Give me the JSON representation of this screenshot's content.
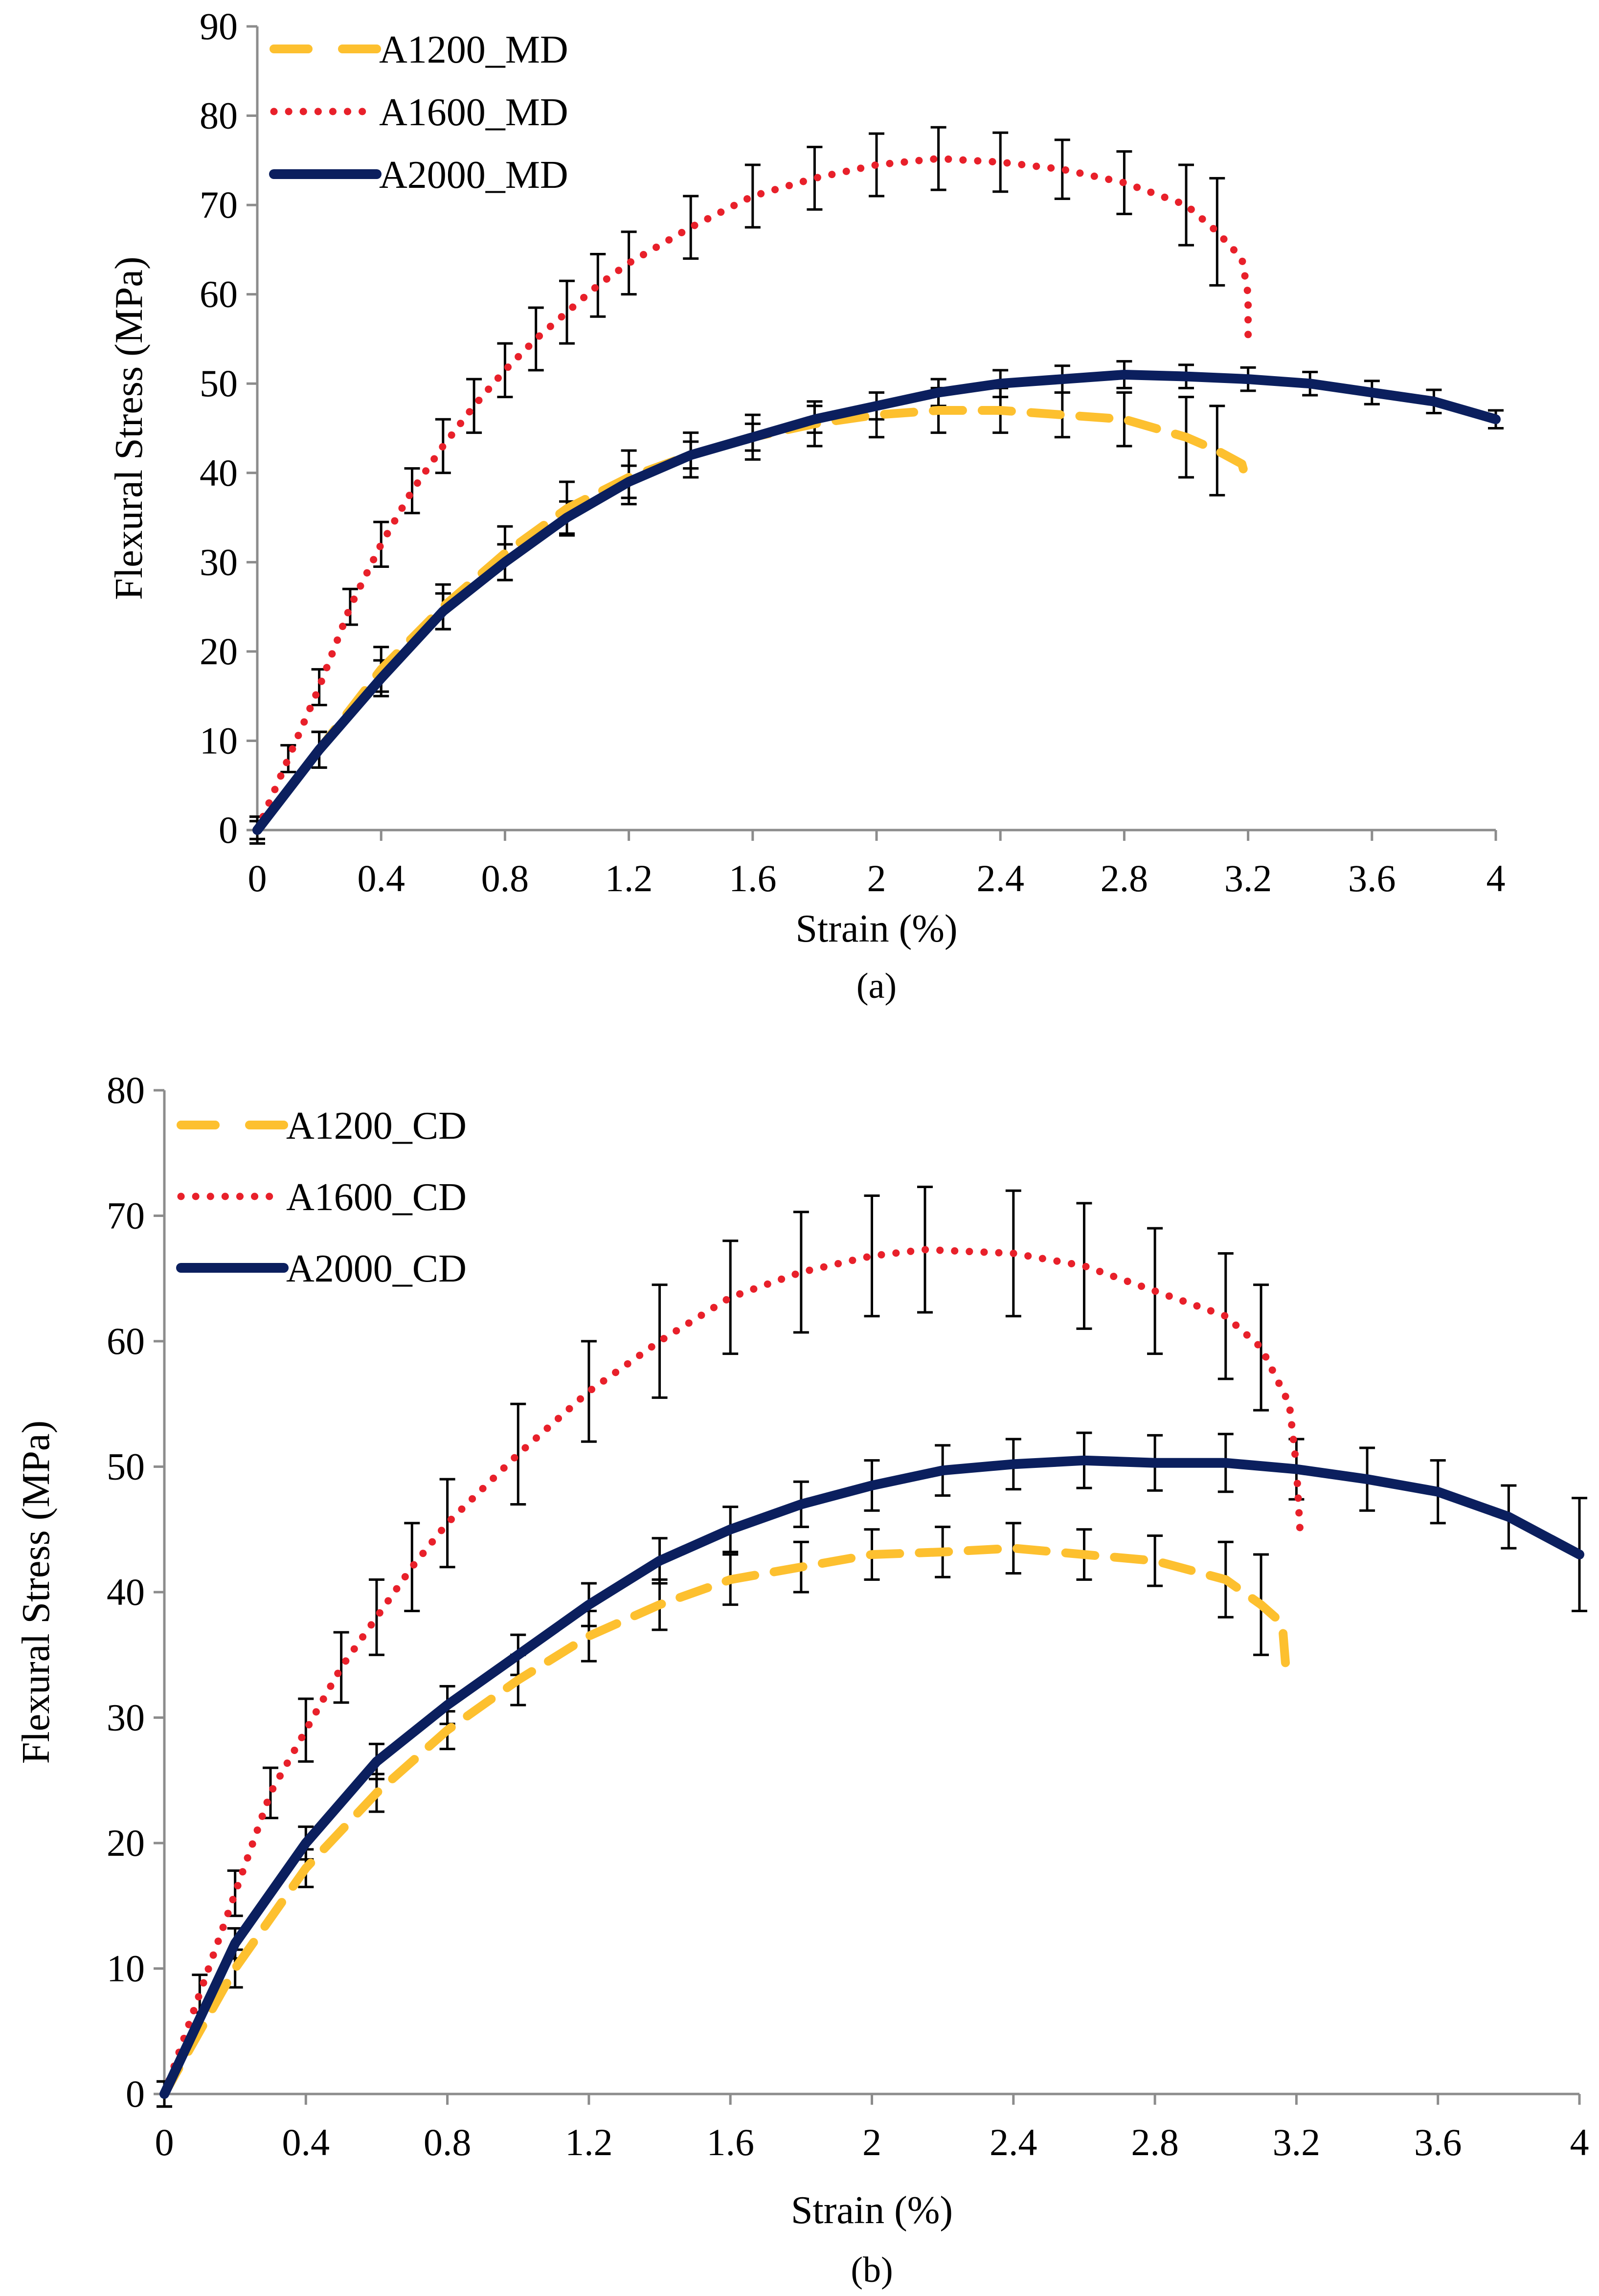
{
  "colors": {
    "A1200": "#FDC02F",
    "A1600": "#E8202A",
    "A2000": "#0B1F5E",
    "axis": "#8c8c8c",
    "error": "#000000"
  },
  "chart_data": [
    {
      "type": "line",
      "panel_label": "(a)",
      "xlabel": "Strain (%)",
      "ylabel": "Flexural Stress (MPa)",
      "xlim": [
        0,
        4
      ],
      "ylim": [
        0,
        90
      ],
      "xticks": [
        0,
        0.4,
        0.8,
        1.2,
        1.6,
        2,
        2.4,
        2.8,
        3.2,
        3.6,
        4
      ],
      "xtick_labels": [
        "0",
        "0.4",
        "0.8",
        "1.2",
        "1.6",
        "2",
        "2.4",
        "2.8",
        "3.2",
        "3.6",
        "4"
      ],
      "yticks": [
        0,
        10,
        20,
        30,
        40,
        50,
        60,
        70,
        80,
        90
      ],
      "ytick_labels": [
        "0",
        "10",
        "20",
        "30",
        "40",
        "50",
        "60",
        "70",
        "80",
        "90"
      ],
      "legend_position": "top-left",
      "series": [
        {
          "name": "A1200_MD",
          "style": "dashed",
          "color_key": "A1200",
          "x": [
            0,
            0.2,
            0.4,
            0.6,
            0.8,
            1.0,
            1.2,
            1.4,
            1.6,
            1.8,
            2.0,
            2.2,
            2.4,
            2.6,
            2.8,
            3.0,
            3.1,
            3.18,
            3.2
          ],
          "y": [
            0,
            9,
            18,
            25,
            31,
            36,
            39.5,
            42,
            44,
            45.5,
            46.5,
            47,
            47,
            46.5,
            46,
            44,
            42.5,
            41,
            38.5
          ],
          "err": [
            1.5,
            2,
            2.5,
            2.5,
            3,
            3,
            3,
            2.5,
            2.5,
            2.5,
            2.5,
            2.5,
            2.5,
            2.5,
            3,
            4.5,
            5,
            0,
            0
          ]
        },
        {
          "name": "A1600_MD",
          "style": "dotted",
          "color_key": "A1600",
          "x": [
            0,
            0.1,
            0.2,
            0.3,
            0.4,
            0.5,
            0.6,
            0.7,
            0.8,
            0.9,
            1.0,
            1.1,
            1.2,
            1.4,
            1.6,
            1.8,
            2.0,
            2.2,
            2.4,
            2.6,
            2.8,
            3.0,
            3.1,
            3.18,
            3.2,
            3.2
          ],
          "y": [
            0,
            8,
            16,
            25,
            32,
            38,
            43,
            47.5,
            51.5,
            55,
            58,
            61,
            63.5,
            67.5,
            71,
            73,
            74.5,
            75.2,
            74.8,
            74,
            72.5,
            70,
            67,
            64,
            60,
            55
          ],
          "err": [
            1,
            1.5,
            2,
            2,
            2.5,
            2.5,
            3,
            3,
            3,
            3.5,
            3.5,
            3.5,
            3.5,
            3.5,
            3.5,
            3.5,
            3.5,
            3.5,
            3.3,
            3.3,
            3.5,
            4.5,
            6,
            0,
            0,
            0
          ]
        },
        {
          "name": "A2000_MD",
          "style": "solid",
          "color_key": "A2000",
          "x": [
            0,
            0.2,
            0.4,
            0.6,
            0.8,
            1.0,
            1.2,
            1.4,
            1.6,
            1.8,
            2.0,
            2.2,
            2.4,
            2.6,
            2.8,
            3.0,
            3.2,
            3.4,
            3.6,
            3.8,
            4.0
          ],
          "y": [
            0,
            9,
            17,
            24.5,
            30,
            35,
            39,
            42,
            44,
            46,
            47.5,
            49,
            50,
            50.5,
            51,
            50.8,
            50.5,
            50,
            49,
            48,
            46
          ],
          "err": [
            1.5,
            2,
            2,
            2,
            2,
            1.8,
            1.8,
            1.5,
            1.5,
            1.5,
            1.5,
            1.5,
            1.5,
            1.5,
            1.5,
            1.3,
            1.3,
            1.3,
            1.3,
            1.3,
            1
          ]
        }
      ]
    },
    {
      "type": "line",
      "panel_label": "(b)",
      "xlabel": "Strain (%)",
      "ylabel": "Flexural Stress (MPa)",
      "xlim": [
        0,
        4
      ],
      "ylim": [
        0,
        80
      ],
      "xticks": [
        0,
        0.4,
        0.8,
        1.2,
        1.6,
        2,
        2.4,
        2.8,
        3.2,
        3.6,
        4
      ],
      "xtick_labels": [
        "0",
        "0.4",
        "0.8",
        "1.2",
        "1.6",
        "2",
        "2.4",
        "2.8",
        "3.2",
        "3.6",
        "4"
      ],
      "yticks": [
        0,
        10,
        20,
        30,
        40,
        50,
        60,
        70,
        80
      ],
      "ytick_labels": [
        "0",
        "10",
        "20",
        "30",
        "40",
        "50",
        "60",
        "70",
        "80"
      ],
      "legend_position": "top-left",
      "series": [
        {
          "name": "A1200_CD",
          "style": "dashed",
          "color_key": "A1200",
          "x": [
            0,
            0.2,
            0.4,
            0.6,
            0.8,
            1.0,
            1.2,
            1.4,
            1.6,
            1.8,
            2.0,
            2.2,
            2.4,
            2.6,
            2.8,
            3.0,
            3.1,
            3.16,
            3.17
          ],
          "y": [
            0,
            10,
            18,
            24,
            29,
            33,
            36.5,
            39,
            41,
            42,
            43,
            43.2,
            43.5,
            43,
            42.5,
            41,
            39,
            37.5,
            34
          ],
          "err": [
            1,
            1.5,
            1.5,
            1.5,
            1.5,
            2,
            2,
            2,
            2,
            2,
            2,
            2,
            2,
            2,
            2,
            3,
            4,
            0,
            0
          ]
        },
        {
          "name": "A1600_CD",
          "style": "dotted",
          "color_key": "A1600",
          "x": [
            0,
            0.1,
            0.2,
            0.3,
            0.4,
            0.5,
            0.6,
            0.7,
            0.8,
            1.0,
            1.2,
            1.4,
            1.6,
            1.8,
            2.0,
            2.15,
            2.4,
            2.6,
            2.8,
            3.0,
            3.1,
            3.18,
            3.2,
            3.21
          ],
          "y": [
            0,
            8,
            16,
            24,
            29,
            34,
            38,
            42,
            45.5,
            51,
            56,
            60,
            63.5,
            65.5,
            66.8,
            67.3,
            67,
            66,
            64,
            62,
            59.5,
            55,
            50,
            45
          ],
          "err": [
            1,
            1.5,
            1.8,
            2,
            2.5,
            2.8,
            3,
            3.5,
            3.5,
            4,
            4,
            4.5,
            4.5,
            4.8,
            4.8,
            5,
            5,
            5,
            5,
            5,
            5,
            0,
            0,
            0
          ]
        },
        {
          "name": "A2000_CD",
          "style": "solid",
          "color_key": "A2000",
          "x": [
            0,
            0.2,
            0.4,
            0.6,
            0.8,
            1.0,
            1.2,
            1.4,
            1.6,
            1.8,
            2.0,
            2.2,
            2.4,
            2.6,
            2.8,
            3.0,
            3.2,
            3.4,
            3.6,
            3.8,
            4.0
          ],
          "y": [
            0,
            12,
            20,
            26.5,
            31,
            35,
            39,
            42.5,
            45,
            47,
            48.5,
            49.7,
            50.2,
            50.5,
            50.3,
            50.3,
            49.8,
            49,
            48,
            46,
            43
          ],
          "err": [
            1,
            1.2,
            1.3,
            1.4,
            1.5,
            1.6,
            1.7,
            1.8,
            1.8,
            1.8,
            2,
            2,
            2,
            2.2,
            2.2,
            2.3,
            2.4,
            2.5,
            2.5,
            2.5,
            4.5
          ]
        }
      ]
    }
  ]
}
